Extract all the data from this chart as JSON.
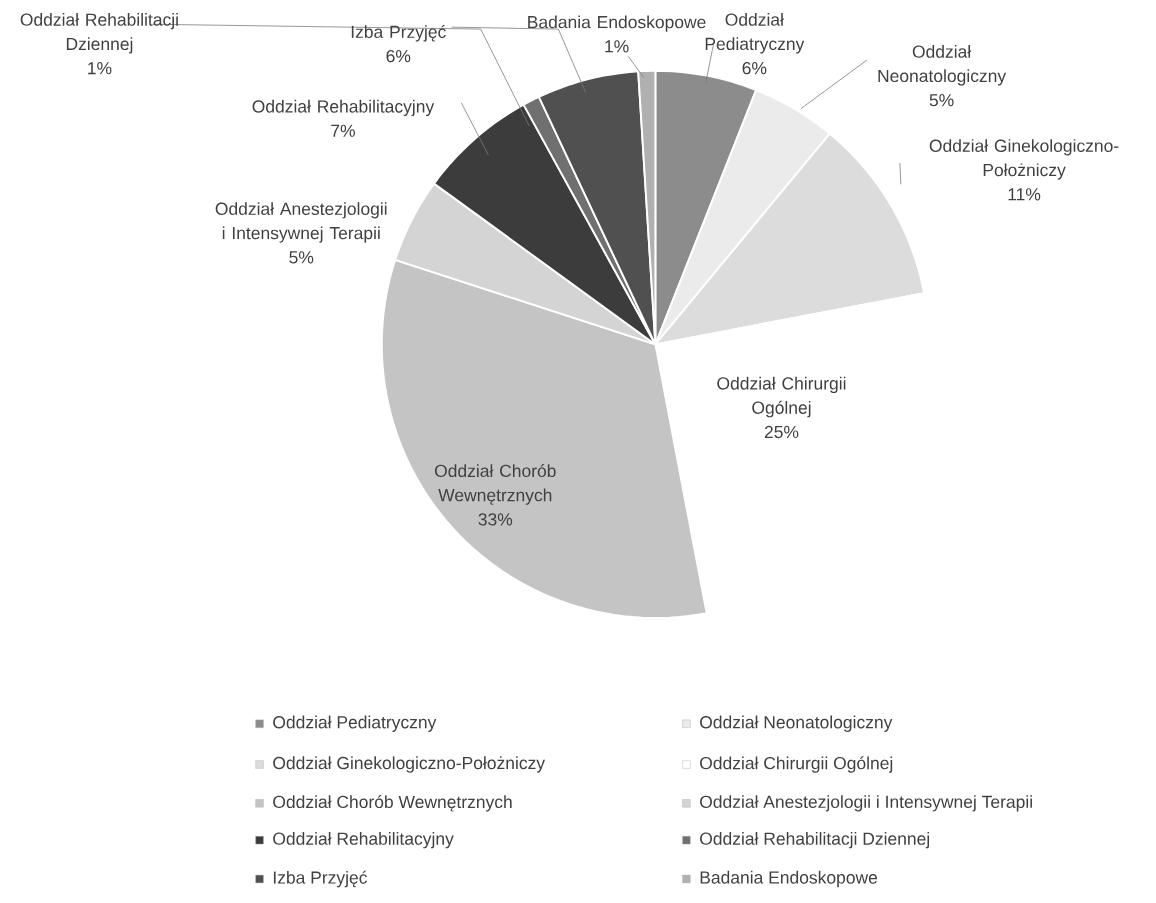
{
  "chart_data": {
    "type": "pie",
    "categories": [
      "Oddział Pediatryczny",
      "Oddział Neonatologiczny",
      "Oddział Ginekologiczno-Położniczy",
      "Oddział Chirurgii Ogólnej",
      "Oddział Chorób Wewnętrznych",
      "Oddział Anestezjologii i Intensywnej Terapii",
      "Oddział Rehabilitacyjny",
      "Oddział Rehabilitacji Dziennej",
      "Izba Przyjęć",
      "Badania Endoskopowe"
    ],
    "values": [
      6,
      5,
      11,
      25,
      33,
      5,
      7,
      1,
      6,
      1
    ],
    "value_labels": [
      "6%",
      "5%",
      "11%",
      "25%",
      "33%",
      "5%",
      "7%",
      "1%",
      "6%",
      "1%"
    ],
    "colors": [
      "#8c8c8c",
      "#ebebeb",
      "#dcdcdc",
      "#ffffff",
      "#c4c4c4",
      "#d4d4d4",
      "#3c3c3c",
      "#707070",
      "#505050",
      "#b0b0b0"
    ],
    "legend": "bottom"
  }
}
